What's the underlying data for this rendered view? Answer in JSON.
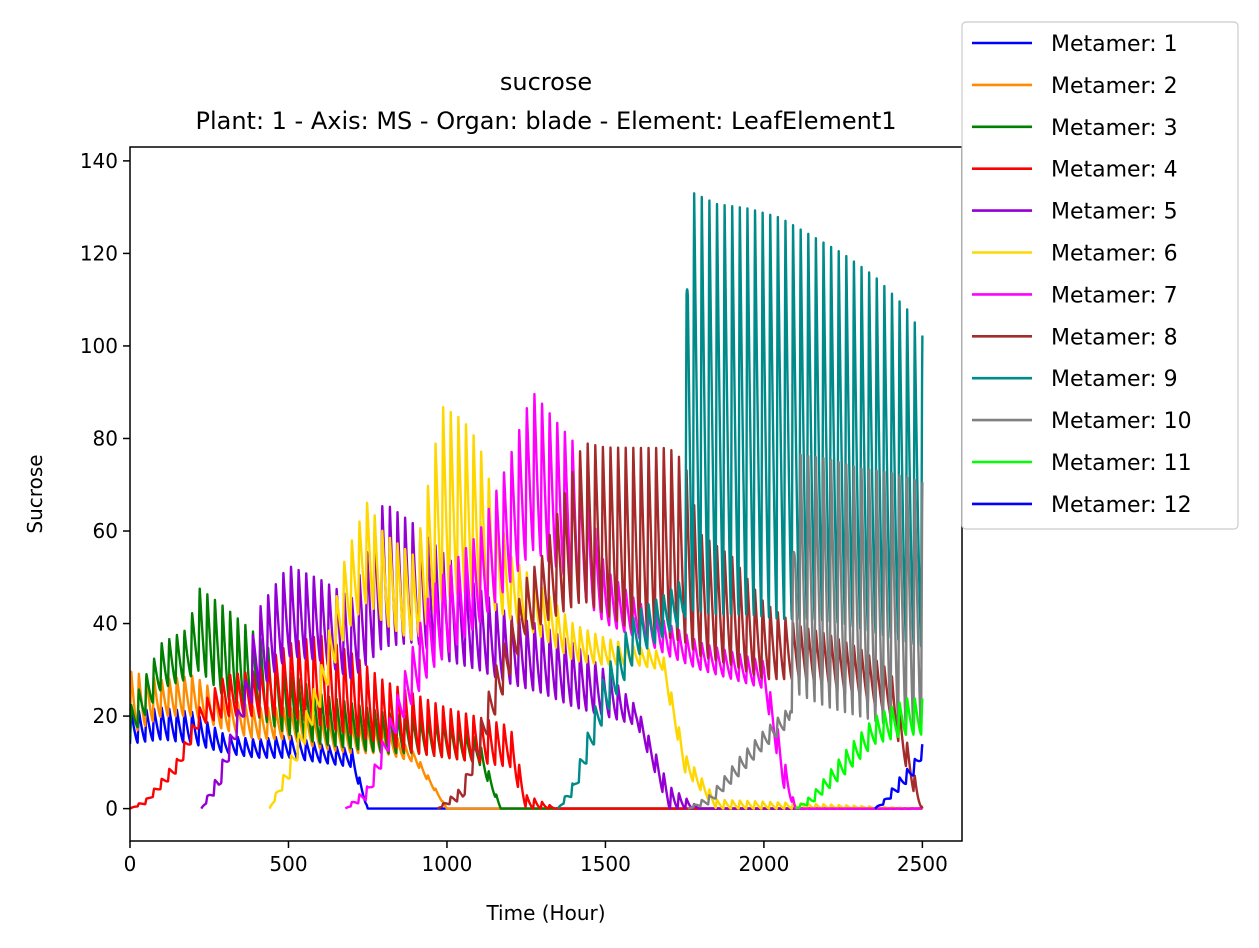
{
  "chart_data": {
    "type": "line",
    "title": "sucrose",
    "subtitle": "Plant: 1 - Axis: MS - Organ: blade - Element: LeafElement1",
    "xlabel": "Time (Hour)",
    "ylabel": "Sucrose",
    "xlim": [
      0,
      2625
    ],
    "ylim": [
      -7,
      143
    ],
    "xticks": [
      0,
      500,
      1000,
      1500,
      2000,
      2500
    ],
    "yticks": [
      0,
      20,
      40,
      60,
      80,
      100,
      120,
      140
    ],
    "grid": false,
    "legend_position": "upper-right, outside plot",
    "series": [
      {
        "name": "Metamer: 1",
        "color": "#0000ff",
        "start": 0,
        "end": 2500,
        "envelope": [
          [
            0,
            14,
            21
          ],
          [
            100,
            15,
            22
          ],
          [
            200,
            14,
            21
          ],
          [
            300,
            12,
            16
          ],
          [
            400,
            11,
            15
          ],
          [
            500,
            11,
            16
          ],
          [
            600,
            10,
            14
          ],
          [
            700,
            9,
            13
          ],
          [
            750,
            0,
            0
          ],
          [
            2500,
            0,
            0
          ]
        ]
      },
      {
        "name": "Metamer: 2",
        "color": "#ff8c00",
        "start": 0,
        "end": 2500,
        "envelope": [
          [
            0,
            16,
            30
          ],
          [
            100,
            20,
            28
          ],
          [
            200,
            20,
            29
          ],
          [
            300,
            17,
            24
          ],
          [
            400,
            15,
            22
          ],
          [
            500,
            15,
            22
          ],
          [
            600,
            13,
            20
          ],
          [
            700,
            12,
            19
          ],
          [
            800,
            12,
            18
          ],
          [
            900,
            10,
            12
          ],
          [
            1000,
            0,
            0
          ],
          [
            2500,
            0,
            0
          ]
        ]
      },
      {
        "name": "Metamer: 3",
        "color": "#008000",
        "start": 0,
        "end": 2500,
        "envelope": [
          [
            0,
            15,
            22
          ],
          [
            100,
            26,
            36
          ],
          [
            180,
            28,
            39
          ],
          [
            220,
            30,
            48
          ],
          [
            300,
            24,
            44
          ],
          [
            400,
            20,
            38
          ],
          [
            500,
            16,
            30
          ],
          [
            600,
            14,
            25
          ],
          [
            700,
            13,
            23
          ],
          [
            800,
            12,
            21
          ],
          [
            900,
            12,
            20
          ],
          [
            1000,
            11,
            19
          ],
          [
            1100,
            10,
            15
          ],
          [
            1170,
            0,
            0
          ],
          [
            2500,
            0,
            0
          ]
        ]
      },
      {
        "name": "Metamer: 4",
        "color": "#ff0000",
        "start": 0,
        "end": 2500,
        "envelope": [
          [
            0,
            0,
            0
          ],
          [
            50,
            1,
            2
          ],
          [
            150,
            8,
            11
          ],
          [
            220,
            18,
            22
          ],
          [
            300,
            20,
            29
          ],
          [
            400,
            20,
            30
          ],
          [
            500,
            20,
            36
          ],
          [
            600,
            18,
            38
          ],
          [
            700,
            16,
            34
          ],
          [
            800,
            14,
            28
          ],
          [
            900,
            12,
            25
          ],
          [
            1000,
            11,
            22
          ],
          [
            1100,
            10,
            20
          ],
          [
            1200,
            9,
            18
          ],
          [
            1250,
            0,
            3
          ],
          [
            1350,
            0,
            0
          ],
          [
            2500,
            0,
            0
          ]
        ]
      },
      {
        "name": "Metamer: 5",
        "color": "#9400d3",
        "start": 225,
        "end": 2500,
        "envelope": [
          [
            225,
            0,
            0
          ],
          [
            280,
            4,
            8
          ],
          [
            360,
            20,
            26
          ],
          [
            400,
            25,
            43
          ],
          [
            500,
            33,
            53
          ],
          [
            600,
            32,
            50
          ],
          [
            700,
            28,
            46
          ],
          [
            800,
            35,
            67
          ],
          [
            900,
            36,
            62
          ],
          [
            1000,
            32,
            55
          ],
          [
            1100,
            30,
            48
          ],
          [
            1200,
            27,
            42
          ],
          [
            1300,
            25,
            40
          ],
          [
            1400,
            22,
            36
          ],
          [
            1500,
            20,
            30
          ],
          [
            1600,
            18,
            22
          ],
          [
            1700,
            0,
            5
          ],
          [
            1800,
            0,
            0
          ],
          [
            2500,
            0,
            0
          ]
        ]
      },
      {
        "name": "Metamer: 6",
        "color": "#ffd700",
        "start": 440,
        "end": 2500,
        "envelope": [
          [
            440,
            0,
            0
          ],
          [
            500,
            6,
            10
          ],
          [
            600,
            22,
            30
          ],
          [
            680,
            38,
            55
          ],
          [
            750,
            45,
            67
          ],
          [
            800,
            40,
            60
          ],
          [
            900,
            36,
            55
          ],
          [
            985,
            45,
            88
          ],
          [
            1050,
            47,
            85
          ],
          [
            1100,
            45,
            80
          ],
          [
            1200,
            41,
            55
          ],
          [
            1300,
            37,
            48
          ],
          [
            1400,
            32,
            40
          ],
          [
            1500,
            31,
            37
          ],
          [
            1600,
            31,
            35
          ],
          [
            1680,
            30,
            34
          ],
          [
            1750,
            8,
            12
          ],
          [
            1850,
            0,
            2
          ],
          [
            2500,
            0,
            0
          ]
        ]
      },
      {
        "name": "Metamer: 7",
        "color": "#ff00ff",
        "start": 680,
        "end": 2500,
        "envelope": [
          [
            680,
            0,
            0
          ],
          [
            750,
            2,
            5
          ],
          [
            850,
            18,
            26
          ],
          [
            950,
            30,
            48
          ],
          [
            1100,
            40,
            60
          ],
          [
            1190,
            48,
            75
          ],
          [
            1270,
            56,
            91
          ],
          [
            1350,
            52,
            84
          ],
          [
            1400,
            48,
            80
          ],
          [
            1500,
            40,
            52
          ],
          [
            1600,
            37,
            45
          ],
          [
            1700,
            33,
            40
          ],
          [
            1800,
            30,
            36
          ],
          [
            1900,
            28,
            34
          ],
          [
            2000,
            26,
            32
          ],
          [
            2060,
            5,
            12
          ],
          [
            2100,
            0,
            0
          ],
          [
            2500,
            0,
            0
          ]
        ]
      },
      {
        "name": "Metamer: 8",
        "color": "#a52a2a",
        "start": 970,
        "end": 2500,
        "envelope": [
          [
            970,
            0,
            0
          ],
          [
            1050,
            2,
            5
          ],
          [
            1150,
            20,
            30
          ],
          [
            1250,
            38,
            50
          ],
          [
            1300,
            40,
            55
          ],
          [
            1430,
            45,
            80
          ],
          [
            1500,
            42,
            79
          ],
          [
            1600,
            38,
            79
          ],
          [
            1700,
            37,
            79
          ],
          [
            1750,
            36,
            76
          ],
          [
            1800,
            33,
            60
          ],
          [
            1900,
            31,
            55
          ],
          [
            2000,
            28,
            45
          ],
          [
            2100,
            28,
            40
          ],
          [
            2200,
            26,
            38
          ],
          [
            2300,
            24,
            35
          ],
          [
            2400,
            20,
            30
          ],
          [
            2480,
            2,
            6
          ],
          [
            2500,
            0,
            0
          ]
        ]
      },
      {
        "name": "Metamer: 9",
        "color": "#008b8b",
        "start": 1350,
        "end": 2500,
        "envelope": [
          [
            1350,
            0,
            0
          ],
          [
            1400,
            3,
            6
          ],
          [
            1500,
            20,
            30
          ],
          [
            1600,
            33,
            43
          ],
          [
            1700,
            38,
            47
          ],
          [
            1745,
            40,
            50
          ],
          [
            1760,
            43,
            136
          ],
          [
            1850,
            42,
            133
          ],
          [
            1950,
            42,
            132
          ],
          [
            2050,
            41,
            130
          ],
          [
            2150,
            41,
            126
          ],
          [
            2250,
            40,
            122
          ],
          [
            2350,
            38,
            117
          ],
          [
            2450,
            36,
            110
          ],
          [
            2500,
            35,
            104
          ]
        ]
      },
      {
        "name": "Metamer: 10",
        "color": "#808080",
        "start": 1760,
        "end": 2500,
        "envelope": [
          [
            1760,
            0,
            0
          ],
          [
            1830,
            1,
            3
          ],
          [
            1920,
            7,
            11
          ],
          [
            2000,
            13,
            17
          ],
          [
            2080,
            18,
            22
          ],
          [
            2100,
            25,
            78
          ],
          [
            2200,
            22,
            77
          ],
          [
            2300,
            20,
            75
          ],
          [
            2400,
            18,
            74
          ],
          [
            2500,
            16,
            72
          ]
        ]
      },
      {
        "name": "Metamer: 11",
        "color": "#00ff00",
        "start": 2100,
        "end": 2500,
        "envelope": [
          [
            2100,
            0,
            0
          ],
          [
            2150,
            1,
            3
          ],
          [
            2250,
            7,
            12
          ],
          [
            2350,
            14,
            20
          ],
          [
            2450,
            16,
            24
          ],
          [
            2500,
            16,
            24
          ]
        ]
      },
      {
        "name": "Metamer: 12",
        "color": "#0000ff",
        "start": 2350,
        "end": 2500,
        "envelope": [
          [
            2350,
            0,
            0
          ],
          [
            2380,
            1,
            2
          ],
          [
            2430,
            4,
            7
          ],
          [
            2470,
            7,
            10
          ],
          [
            2500,
            11,
            14
          ]
        ]
      }
    ]
  }
}
